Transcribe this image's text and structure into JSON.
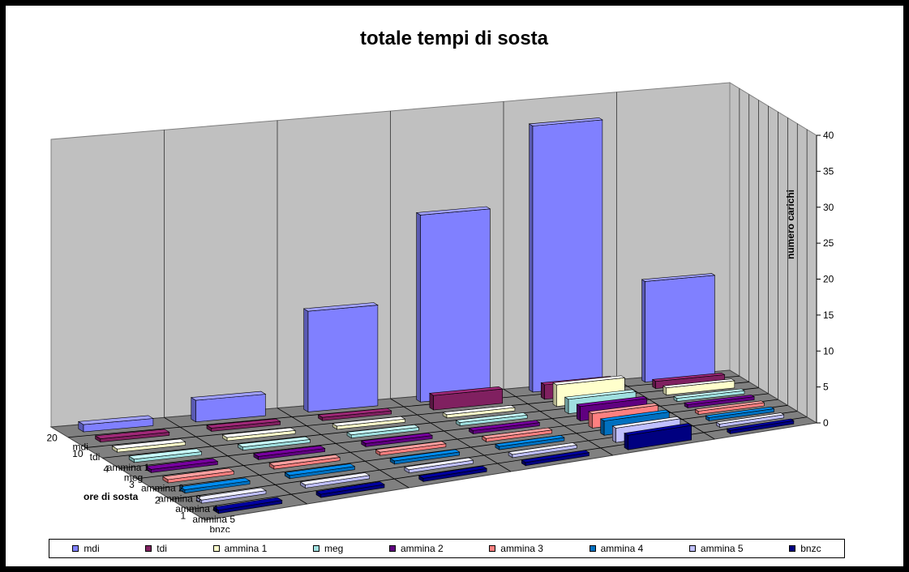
{
  "chart_data": {
    "type": "bar3d",
    "title": "totale tempi di sosta",
    "zlabel": "numero carichi",
    "xlabel": "ore di sosta",
    "zlim": [
      0,
      40
    ],
    "zticks": [
      "0",
      "5",
      "10",
      "15",
      "20",
      "25",
      "30",
      "35",
      "40"
    ],
    "categories": [
      "1",
      "2",
      "3",
      "4",
      "10",
      "20"
    ],
    "series": [
      {
        "name": "mdi",
        "color": "#8080FF",
        "values": [
          14,
          37,
          26,
          14,
          3,
          1
        ]
      },
      {
        "name": "tdi",
        "color": "#802060",
        "values": [
          1,
          2,
          2,
          0,
          0,
          0
        ]
      },
      {
        "name": "ammina 1",
        "color": "#FFFFCC",
        "values": [
          1,
          3,
          0,
          0,
          0,
          0
        ]
      },
      {
        "name": "meg",
        "color": "#A0E0E0",
        "values": [
          0,
          2,
          0,
          0,
          0,
          0
        ]
      },
      {
        "name": "ammina 2",
        "color": "#600080",
        "values": [
          0,
          2,
          0,
          0,
          0,
          0
        ]
      },
      {
        "name": "ammina 3",
        "color": "#FF8080",
        "values": [
          0,
          2,
          0,
          0,
          0,
          0
        ]
      },
      {
        "name": "ammina 4",
        "color": "#0070C0",
        "values": [
          0,
          2,
          0,
          0,
          0,
          0
        ]
      },
      {
        "name": "ammina 5",
        "color": "#C0C0FF",
        "values": [
          0,
          2,
          0,
          0,
          0,
          0
        ]
      },
      {
        "name": "bnzc",
        "color": "#000080",
        "values": [
          0,
          2,
          0,
          0,
          0,
          0
        ]
      }
    ],
    "legend_position": "bottom",
    "grid": true
  }
}
